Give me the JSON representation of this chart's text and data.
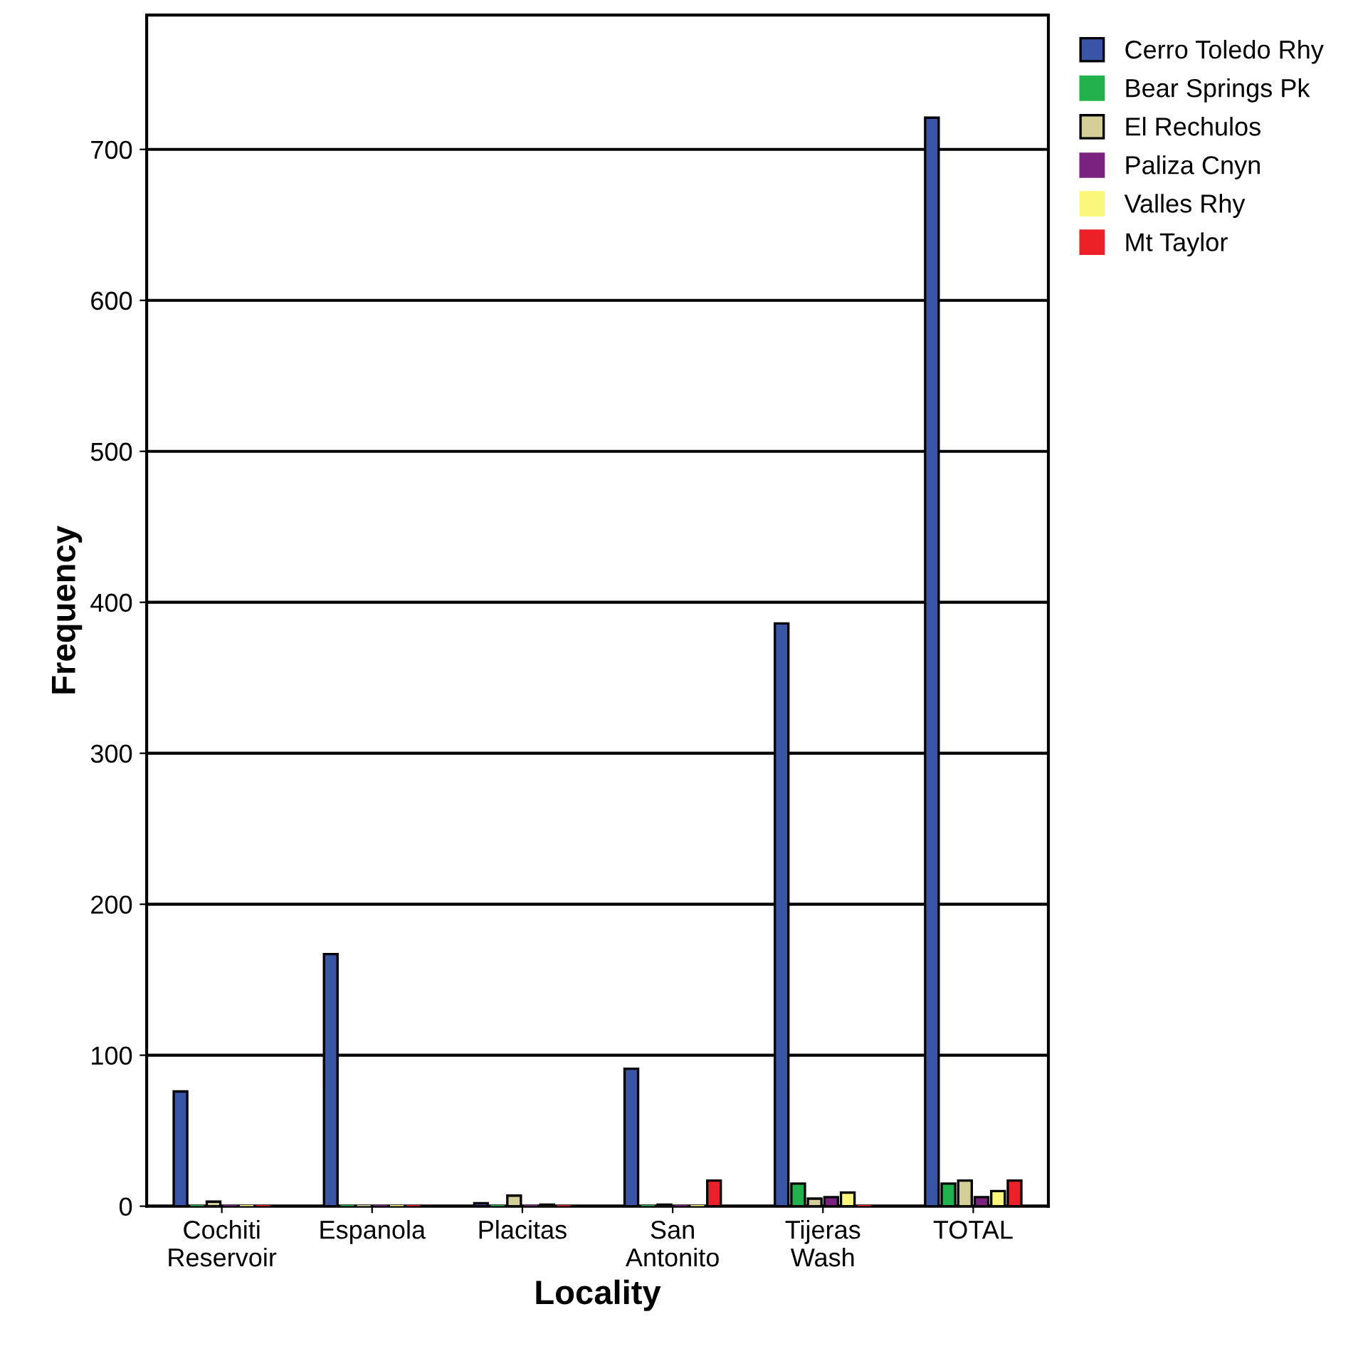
{
  "chart_data": {
    "type": "bar",
    "xlabel": "Locality",
    "ylabel": "Frequency",
    "categories": [
      "Cochiti\nReservoir",
      "Espanola",
      "Placitas",
      "San\nAntonito",
      "Tijeras\nWash",
      "TOTAL"
    ],
    "series": [
      {
        "name": "Cerro Toledo Rhy",
        "color": "#3a54a6",
        "values": [
          76,
          167,
          2,
          91,
          386,
          721
        ]
      },
      {
        "name": "Bear Springs Pk",
        "color": "#23b14d",
        "values": [
          0,
          0,
          0,
          0,
          15,
          15
        ]
      },
      {
        "name": "El Rechulos",
        "color": "#d4cf98",
        "values": [
          3,
          0,
          7,
          1,
          5,
          17
        ]
      },
      {
        "name": "Paliza Cnyn",
        "color": "#7b2180",
        "values": [
          0,
          0,
          0,
          0,
          6,
          6
        ]
      },
      {
        "name": "Valles Rhy",
        "color": "#fbf77c",
        "values": [
          0,
          0,
          1,
          0,
          9,
          10
        ]
      },
      {
        "name": "Mt Taylor",
        "color": "#ec2127",
        "values": [
          0,
          0,
          0,
          17,
          0,
          17
        ]
      }
    ],
    "ylim": [
      0,
      789
    ],
    "yticks": [
      0,
      100,
      200,
      300,
      400,
      500,
      600,
      700
    ],
    "grid": "y",
    "legend": "top right"
  }
}
